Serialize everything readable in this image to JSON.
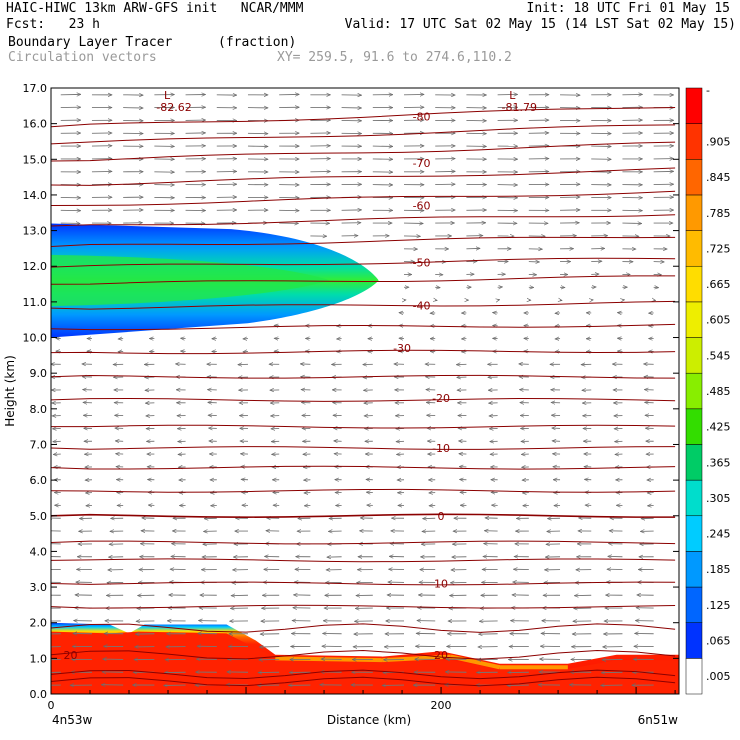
{
  "header": {
    "line1_left": "HAIC-HIWC 13km ARW-GFS init   NCAR/MMM",
    "line1_right": "Init: 18 UTC Fri 01 May 15",
    "line2_left": "Fcst:   23 h",
    "line2_right": "Valid: 17 UTC Sat 02 May 15 (14 LST Sat 02 May 15)",
    "field1_name": "Boundary Layer Tracer",
    "field1_units": "(fraction)",
    "field2_name": "Circulation vectors",
    "xy_label": "XY= 259.5, 91.6 to 274.6,110.2"
  },
  "chart_data": {
    "type": "heatmap",
    "title": "Boundary Layer Tracer (fraction)",
    "xlabel": "Distance (km)",
    "ylabel": "Height (km)",
    "xlim": [
      0,
      322
    ],
    "ylim": [
      0,
      17
    ],
    "x_ticks": [
      0,
      200
    ],
    "x_end_labels": [
      "4n53w",
      "6n51w"
    ],
    "y_ticks": [
      0.0,
      1.0,
      2.0,
      3.0,
      4.0,
      5.0,
      6.0,
      7.0,
      8.0,
      9.0,
      10.0,
      11.0,
      12.0,
      13.0,
      14.0,
      15.0,
      16.0,
      17.0
    ],
    "colorbar": {
      "labels": [
        ".005",
        ".065",
        ".125",
        ".185",
        ".245",
        ".305",
        ".365",
        ".425",
        ".485",
        ".545",
        ".605",
        ".665",
        ".725",
        ".785",
        ".845",
        ".905",
        "-"
      ],
      "colors": [
        "#ffffff",
        "#0033ff",
        "#0066ff",
        "#0099ff",
        "#00ccff",
        "#00ddcc",
        "#00cc66",
        "#33dd00",
        "#88ee00",
        "#ccee00",
        "#eeee00",
        "#ffdd00",
        "#ffbb00",
        "#ff9900",
        "#ff6600",
        "#ff3300",
        "#ff0000"
      ]
    },
    "contours": {
      "color": "#8b0000",
      "levels": [
        {
          "label": "-80",
          "x": 190,
          "y": 16.2
        },
        {
          "label": "-70",
          "x": 190,
          "y": 14.9
        },
        {
          "label": "-60",
          "x": 190,
          "y": 13.7
        },
        {
          "label": "-50",
          "x": 190,
          "y": 12.1
        },
        {
          "label": "-40",
          "x": 190,
          "y": 10.9
        },
        {
          "label": "-30",
          "x": 180,
          "y": 9.7
        },
        {
          "label": "-20",
          "x": 200,
          "y": 8.3
        },
        {
          "label": "-10",
          "x": 200,
          "y": 6.9
        },
        {
          "label": "0",
          "x": 200,
          "y": 5.0
        },
        {
          "label": "10",
          "x": 200,
          "y": 3.1
        },
        {
          "label": "20",
          "x": 200,
          "y": 1.1
        },
        {
          "label": "20",
          "x": 10,
          "y": 1.1
        }
      ],
      "minima": [
        {
          "label": "L",
          "value": "-82.62",
          "x": 60,
          "y": 16.8
        },
        {
          "label": "L",
          "value": "-81.79",
          "x": 237,
          "y": 16.8
        }
      ]
    },
    "features": {
      "upper_plume": {
        "x_start": 0,
        "x_end": 168,
        "center_y": 11.6,
        "half_thickness_km": 1.6,
        "peak_value": 0.305
      },
      "boundary_layer": {
        "top_left_km": 2.0,
        "top_right_km": 1.1,
        "value_near_surface": 0.905
      }
    }
  }
}
